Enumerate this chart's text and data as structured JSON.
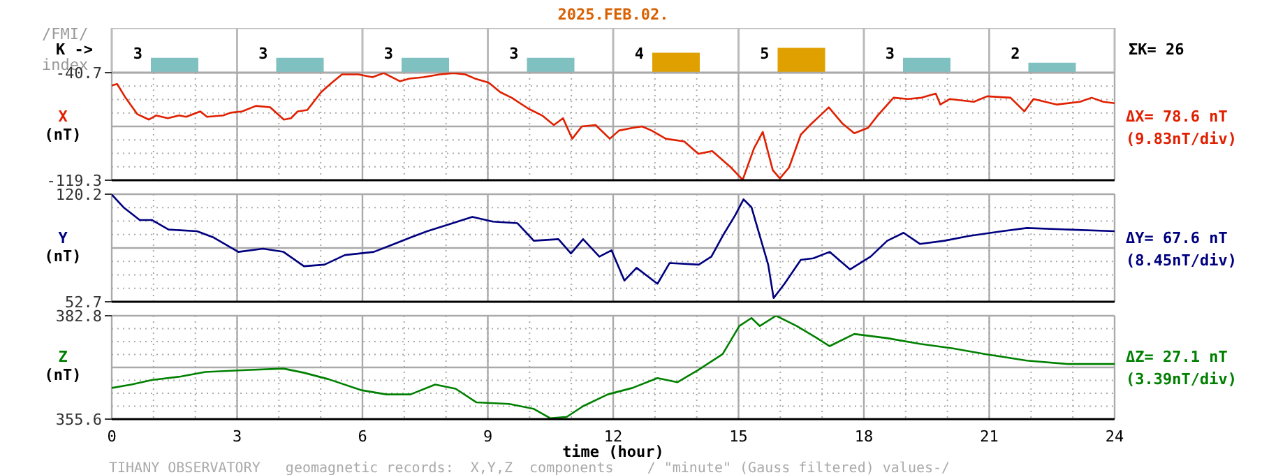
{
  "chart_data": [
    {
      "type": "bar",
      "title": "2025.FEB.02.",
      "categories": [
        null,
        null,
        null,
        null,
        null,
        null,
        null,
        null
      ],
      "values": [
        3,
        3,
        3,
        3,
        4,
        5,
        3,
        2
      ],
      "colors": [
        "#7fc0c0",
        "#7fc0c0",
        "#7fc0c0",
        "#7fc0c0",
        "#e0a000",
        "#e0a000",
        "#7fc0c0",
        "#7fc0c0"
      ],
      "data_labels": true,
      "tick_labels": false,
      "annotations": [
        "/FMI/",
        "K ->",
        "index",
        "ΣK= 26"
      ]
    },
    {
      "type": "line",
      "ylabel": "X (nT)",
      "xlim": [
        0,
        24
      ],
      "xticks": [
        0,
        3,
        6,
        9,
        12,
        15,
        18,
        21,
        24
      ],
      "ylim": [
        -119.3,
        -40.7
      ],
      "yticks": [
        -119.3,
        -40.7
      ],
      "grid": true,
      "tick_labels": "y",
      "series": [
        {
          "color": "#e02000",
          "x": [
            0,
            0.13,
            0.33,
            0.61,
            0.89,
            1.06,
            1.34,
            1.61,
            1.78,
            2.12,
            2.28,
            2.67,
            2.84,
            3.12,
            3.45,
            3.79,
            4.12,
            4.29,
            4.45,
            4.68,
            5.01,
            5.23,
            5.51,
            5.9,
            6.24,
            6.51,
            6.9,
            7.13,
            7.46,
            7.85,
            8.18,
            8.46,
            8.69,
            9.02,
            9.3,
            9.57,
            9.97,
            10.3,
            10.58,
            10.8,
            11.02,
            11.25,
            11.58,
            11.92,
            12.14,
            12.47,
            12.69,
            12.92,
            13.26,
            13.7,
            14.04,
            14.37,
            14.82,
            15.1,
            15.37,
            15.58,
            15.82,
            15.99,
            16.21,
            16.49,
            16.71,
            16.99,
            17.16,
            17.49,
            17.77,
            18.1,
            18.33,
            18.71,
            19.05,
            19.38,
            19.72,
            19.83,
            20.05,
            20.63,
            20.95,
            21.51,
            21.84,
            22.06,
            22.62,
            23.17,
            23.45,
            23.73,
            24
          ],
          "values": [
            -50,
            -49,
            -59,
            -71,
            -75,
            -72,
            -74,
            -72,
            -73,
            -69,
            -73,
            -72,
            -70,
            -69,
            -65,
            -66,
            -75,
            -74,
            -69,
            -68,
            -55,
            -49,
            -42,
            -42,
            -44,
            -41,
            -47,
            -45,
            -44,
            -42,
            -41,
            -42,
            -45,
            -48,
            -55,
            -59,
            -67,
            -72,
            -79,
            -74,
            -89,
            -80,
            -79,
            -89,
            -83,
            -81,
            -80,
            -83,
            -89,
            -91,
            -100,
            -98,
            -110,
            -119,
            -96,
            -84,
            -112,
            -118,
            -110,
            -86,
            -79,
            -71,
            -66,
            -78,
            -85,
            -81,
            -72,
            -59,
            -60,
            -59,
            -56,
            -64,
            -60,
            -62,
            -58,
            -59,
            -69,
            -60,
            -64,
            -62,
            -59,
            -62,
            -63
          ]
        }
      ],
      "annotations": [
        "ΔX= 78.6 nT",
        "(9.83nT/div)"
      ]
    },
    {
      "type": "line",
      "ylabel": "Y (nT)",
      "xlim": [
        0,
        24
      ],
      "xticks": [
        0,
        3,
        6,
        9,
        12,
        15,
        18,
        21,
        24
      ],
      "ylim": [
        52.7,
        120.2
      ],
      "yticks": [
        52.7,
        120.2
      ],
      "grid": true,
      "tick_labels": "y",
      "series": [
        {
          "color": "#00007f",
          "x": [
            0,
            0.28,
            0.67,
            0.96,
            1.36,
            2.04,
            2.44,
            3.03,
            3.62,
            4.11,
            4.6,
            5.09,
            5.58,
            6.27,
            6.76,
            7.15,
            7.55,
            8.04,
            8.63,
            9.12,
            9.71,
            10.1,
            10.69,
            10.99,
            11.28,
            11.67,
            11.96,
            12.27,
            12.56,
            13.06,
            13.35,
            14.05,
            14.35,
            14.62,
            14.92,
            15.12,
            15.31,
            15.51,
            15.71,
            15.84,
            16.1,
            16.49,
            16.79,
            17.18,
            17.67,
            18.16,
            18.56,
            18.95,
            19.34,
            19.93,
            20.52,
            21.31,
            21.9,
            22.88,
            24
          ],
          "values": [
            120,
            112,
            104,
            104,
            98,
            97,
            93,
            84,
            86,
            84,
            75,
            76,
            82,
            84,
            89,
            93,
            97,
            101,
            106,
            103,
            102,
            91,
            92,
            83,
            92,
            81,
            85,
            66,
            74,
            64,
            77,
            76,
            81,
            94,
            107,
            117,
            112,
            94,
            76,
            55,
            64,
            79,
            80,
            84,
            73,
            81,
            91,
            96,
            89,
            91,
            94,
            97,
            99,
            98,
            97
          ]
        }
      ],
      "annotations": [
        "ΔY= 67.6 nT",
        "(8.45nT/div)"
      ]
    },
    {
      "type": "line",
      "xlabel": "time (hour)",
      "ylabel": "Z (nT)",
      "xlim": [
        0,
        24
      ],
      "xticks": [
        0,
        3,
        6,
        9,
        12,
        15,
        18,
        21,
        24
      ],
      "ylim": [
        355.6,
        382.8
      ],
      "yticks": [
        355.6,
        382.8
      ],
      "grid": true,
      "series": [
        {
          "color": "#008000",
          "x": [
            0,
            0.47,
            0.96,
            1.65,
            2.24,
            3.22,
            4.11,
            4.6,
            5.19,
            5.98,
            6.57,
            7.15,
            7.74,
            8.23,
            8.73,
            9.51,
            10.1,
            10.5,
            10.89,
            11.28,
            11.87,
            12.46,
            13.06,
            13.54,
            14.03,
            14.62,
            15.02,
            15.31,
            15.51,
            15.9,
            16.39,
            16.88,
            17.18,
            17.77,
            18.56,
            19.34,
            20.13,
            20.91,
            21.9,
            22.88,
            24
          ],
          "values": [
            363.8,
            364.7,
            365.9,
            366.8,
            368.0,
            368.5,
            368.9,
            367.8,
            366.1,
            363.2,
            362.1,
            362.1,
            364.7,
            363.6,
            360.0,
            359.6,
            358.3,
            355.8,
            356.2,
            359.0,
            362.1,
            363.8,
            366.4,
            365.3,
            368.5,
            372.7,
            380.1,
            382.2,
            380.1,
            382.8,
            380.1,
            376.9,
            374.8,
            378.0,
            376.9,
            375.4,
            374.2,
            372.7,
            371.0,
            370.1,
            370.1
          ]
        }
      ],
      "annotations": [
        "ΔZ= 27.1 nT",
        "(3.39nT/div)",
        "TIHANY OBSERVATORY   geomagnetic records:  X,Y,Z  components    / \"minute\" (Gauss filtered) values-/"
      ]
    }
  ]
}
